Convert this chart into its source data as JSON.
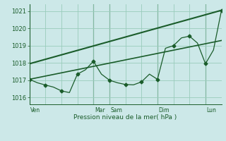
{
  "xlabel": "Pression niveau de la mer( hPa )",
  "bg_color": "#cce8e8",
  "grid_color": "#99ccbb",
  "line_color": "#1a5c2a",
  "ylim": [
    1015.6,
    1021.4
  ],
  "yticks": [
    1016,
    1017,
    1018,
    1019,
    1020,
    1021
  ],
  "day_labels": [
    "Ven",
    "Mar",
    "Sam",
    "Dim",
    "Lun"
  ],
  "day_x": [
    0,
    8,
    10,
    16,
    22
  ],
  "xlim": [
    0,
    24
  ],
  "trend1_x": [
    0,
    24
  ],
  "trend1_y": [
    1017.05,
    1019.3
  ],
  "trend2_x": [
    0,
    24
  ],
  "trend2_y": [
    1017.95,
    1021.05
  ],
  "wiggly_x": [
    0,
    1,
    2,
    3,
    4,
    5,
    6,
    7,
    8,
    9,
    10,
    11,
    12,
    13,
    14,
    15,
    16,
    17,
    18,
    19,
    20,
    21,
    22,
    23,
    24
  ],
  "wiggly_y": [
    1017.05,
    1016.85,
    1016.72,
    1016.6,
    1016.38,
    1016.28,
    1017.35,
    1017.6,
    1018.1,
    1017.35,
    1017.0,
    1016.85,
    1016.75,
    1016.73,
    1016.9,
    1017.35,
    1017.05,
    1018.85,
    1019.0,
    1019.45,
    1019.55,
    1019.15,
    1017.95,
    1018.75,
    1021.05
  ],
  "marker_x": [
    0,
    2,
    4,
    6,
    8,
    10,
    12,
    14,
    16,
    18,
    20,
    22,
    24
  ],
  "marker_y": [
    1017.05,
    1016.72,
    1016.38,
    1017.35,
    1018.1,
    1017.0,
    1016.75,
    1016.9,
    1017.05,
    1019.0,
    1019.55,
    1017.95,
    1021.05
  ]
}
